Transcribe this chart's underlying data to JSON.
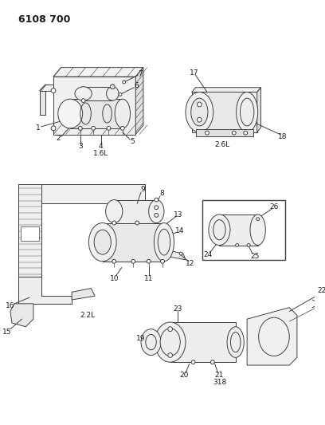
{
  "title": "6108 700",
  "bg": "#ffffff",
  "lc": "#404040",
  "tc": "#1a1a1a",
  "lw": 0.7,
  "label_1p6L": "1.6L",
  "label_2p6L": "2.6L",
  "label_2p2L": "2.2L",
  "label_318": "318",
  "figsize": [
    4.08,
    5.33
  ],
  "dpi": 100
}
